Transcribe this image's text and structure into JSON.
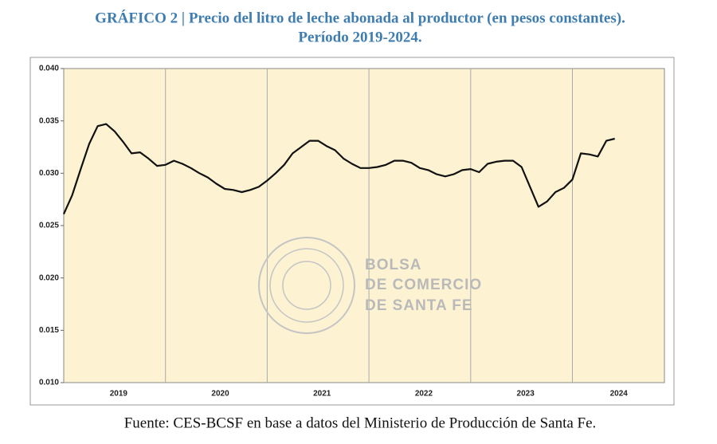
{
  "chart_data": {
    "type": "line",
    "title": [
      "GRÁFICO 2 | Precio del litro de leche abonada al productor (en pesos constantes).",
      "Período 2019-2024."
    ],
    "source": "Fuente: CES-BCSF en base a datos del Ministerio de Producción de Santa Fe.",
    "watermark": [
      "BOLSA",
      "DE COMERCIO",
      "DE SANTA FE"
    ],
    "categories": [
      null,
      null,
      null,
      null,
      null,
      null,
      "2019",
      null,
      null,
      null,
      null,
      null,
      null,
      null,
      null,
      null,
      null,
      null,
      "2020",
      null,
      null,
      null,
      null,
      null,
      null,
      null,
      null,
      null,
      null,
      null,
      "2021",
      null,
      null,
      null,
      null,
      null,
      null,
      null,
      null,
      null,
      null,
      null,
      "2022",
      null,
      null,
      null,
      null,
      null,
      null,
      null,
      null,
      null,
      null,
      null,
      "2023",
      null,
      null,
      null,
      null,
      null,
      null,
      null,
      null,
      null,
      null,
      "2024"
    ],
    "values": [
      0.0261,
      0.0279,
      0.0304,
      0.0328,
      0.0345,
      0.0347,
      0.034,
      0.033,
      0.0319,
      0.032,
      0.0314,
      0.0307,
      0.0308,
      0.0312,
      0.0309,
      0.0305,
      0.03,
      0.0296,
      0.029,
      0.0285,
      0.0284,
      0.0282,
      0.0284,
      0.0287,
      0.0293,
      0.03,
      0.0308,
      0.0319,
      0.0325,
      0.0331,
      0.0331,
      0.0326,
      0.0322,
      0.0314,
      0.0309,
      0.0305,
      0.0305,
      0.0306,
      0.0308,
      0.0312,
      0.0312,
      0.031,
      0.0305,
      0.0303,
      0.0299,
      0.0297,
      0.0299,
      0.0303,
      0.0304,
      0.0301,
      0.0309,
      0.0311,
      0.0312,
      0.0312,
      0.0306,
      0.0287,
      0.0268,
      0.0273,
      0.0282,
      0.0286,
      0.0294,
      0.0319,
      0.0318,
      0.0316,
      0.0331,
      0.0333
    ],
    "color": "#111111",
    "ylim": [
      0.01,
      0.04
    ],
    "yticks": [
      {
        "value": 0.01,
        "label": "0.010"
      },
      0.015,
      {
        "value": 0.02,
        "label": "0.020"
      },
      0.025,
      {
        "value": 0.03,
        "label": "0.030"
      },
      0.035,
      {
        "value": 0.04,
        "label": "0.040"
      }
    ],
    "background": "#fdf3d3"
  }
}
